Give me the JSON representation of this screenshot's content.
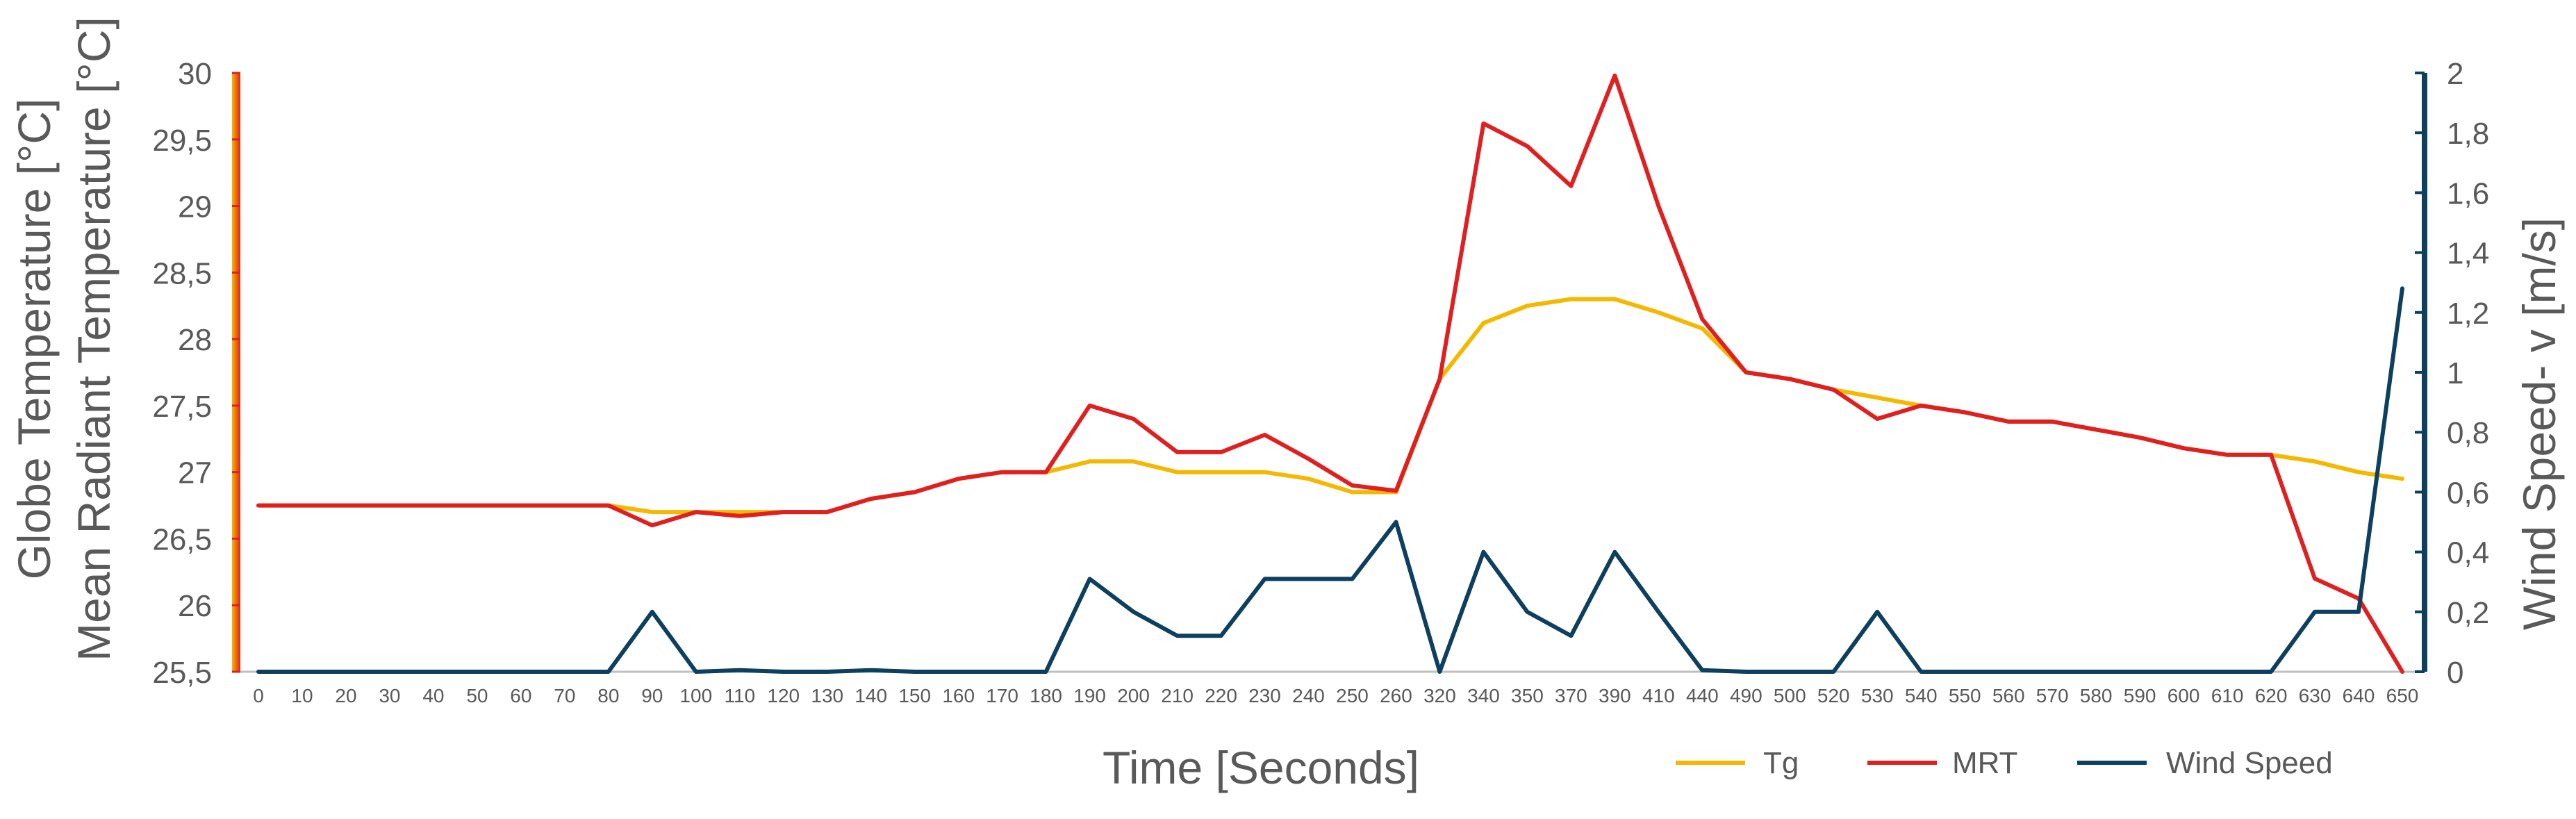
{
  "chart_data": {
    "type": "line",
    "xlabel": "Time [Seconds]",
    "ylabel_left_line1": "Globe Temperature [°C]",
    "ylabel_left_line2": "Mean Radiant Temperature [°C]",
    "ylabel_right": "Wind Speed- v [m/s]",
    "ylim_left": [
      25.5,
      30
    ],
    "ylim_right": [
      0,
      2
    ],
    "y_ticks_left": [
      "25,5",
      "26",
      "26,5",
      "27",
      "27,5",
      "28",
      "28,5",
      "29",
      "29,5",
      "30"
    ],
    "y_ticks_right": [
      "0",
      "0,2",
      "0,4",
      "0,6",
      "0,8",
      "1",
      "1,2",
      "1,4",
      "1,6",
      "1,8",
      "2"
    ],
    "grid": false,
    "legend_position": "bottom-right",
    "categories": [
      "0",
      "10",
      "20",
      "30",
      "40",
      "50",
      "60",
      "70",
      "80",
      "90",
      "100",
      "110",
      "120",
      "130",
      "140",
      "150",
      "160",
      "170",
      "180",
      "190",
      "200",
      "210",
      "220",
      "230",
      "240",
      "250",
      "260",
      "320",
      "340",
      "350",
      "370",
      "390",
      "410",
      "440",
      "490",
      "500",
      "520",
      "530",
      "540",
      "550",
      "560",
      "570",
      "580",
      "590",
      "600",
      "610",
      "620",
      "630",
      "640",
      "650"
    ],
    "series": [
      {
        "name": "Tg",
        "axis": "left",
        "color": "#F5B800",
        "values": [
          26.75,
          26.75,
          26.75,
          26.75,
          26.75,
          26.75,
          26.75,
          26.75,
          26.75,
          26.7,
          26.7,
          26.7,
          26.7,
          26.7,
          26.8,
          26.85,
          26.95,
          27.0,
          27.0,
          27.08,
          27.08,
          27.0,
          27.0,
          27.0,
          26.95,
          26.85,
          26.85,
          27.7,
          28.12,
          28.25,
          28.3,
          28.3,
          28.2,
          28.08,
          27.75,
          27.7,
          27.62,
          27.56,
          27.5,
          27.45,
          27.38,
          27.38,
          27.32,
          27.26,
          27.18,
          27.13,
          27.13,
          27.08,
          27.0,
          26.95
        ]
      },
      {
        "name": "MRT",
        "axis": "left",
        "color": "#E02020",
        "values": [
          26.75,
          26.75,
          26.75,
          26.75,
          26.75,
          26.75,
          26.75,
          26.75,
          26.75,
          26.6,
          26.7,
          26.67,
          26.7,
          26.7,
          26.8,
          26.85,
          26.95,
          27.0,
          27.0,
          27.5,
          27.4,
          27.15,
          27.15,
          27.28,
          27.1,
          26.9,
          26.86,
          27.7,
          29.62,
          29.45,
          29.15,
          29.98,
          29.0,
          28.15,
          27.75,
          27.7,
          27.62,
          27.4,
          27.5,
          27.45,
          27.38,
          27.38,
          27.32,
          27.26,
          27.18,
          27.13,
          27.13,
          26.2,
          26.05,
          25.5
        ]
      },
      {
        "name": "Wind Speed",
        "axis": "right",
        "color": "#0D3F5F",
        "values": [
          0,
          0,
          0,
          0,
          0,
          0,
          0,
          0,
          0,
          0.2,
          0,
          0.005,
          0,
          0,
          0.005,
          0,
          0,
          0,
          0,
          0.31,
          0.2,
          0.12,
          0.12,
          0.31,
          0.31,
          0.31,
          0.5,
          0,
          0.4,
          0.2,
          0.12,
          0.4,
          0.2,
          0.005,
          0,
          0,
          0,
          0.2,
          0,
          0,
          0,
          0,
          0,
          0,
          0,
          0,
          0,
          0.2,
          0.2,
          1.28
        ]
      }
    ]
  }
}
